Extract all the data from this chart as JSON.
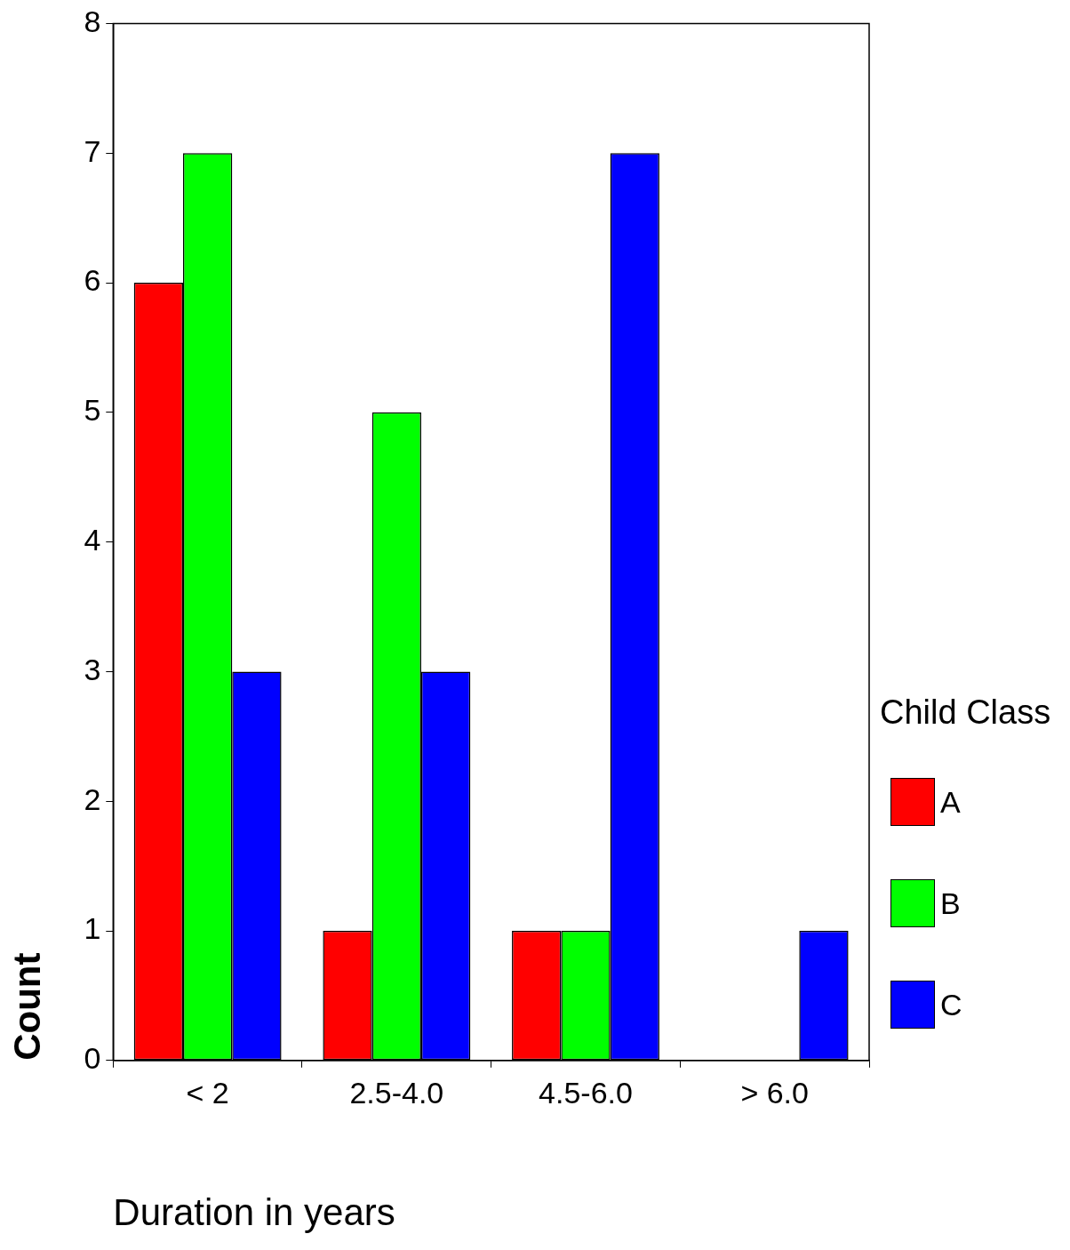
{
  "chart_data": {
    "type": "bar",
    "xlabel": "Duration in years",
    "ylabel": "Count",
    "legend_title": "Child Class",
    "categories": [
      "< 2",
      "2.5-4.0",
      "4.5-6.0",
      "> 6.0"
    ],
    "series": [
      {
        "name": "A",
        "color": "#ff0000",
        "values": [
          6,
          1,
          1,
          0
        ]
      },
      {
        "name": "B",
        "color": "#00ff00",
        "values": [
          7,
          5,
          1,
          0
        ]
      },
      {
        "name": "C",
        "color": "#0000ff",
        "values": [
          3,
          3,
          7,
          1
        ]
      }
    ],
    "ylim": [
      0,
      8
    ],
    "yticks": [
      0,
      1,
      2,
      3,
      4,
      5,
      6,
      7,
      8
    ],
    "grid": false,
    "legend": "right"
  }
}
